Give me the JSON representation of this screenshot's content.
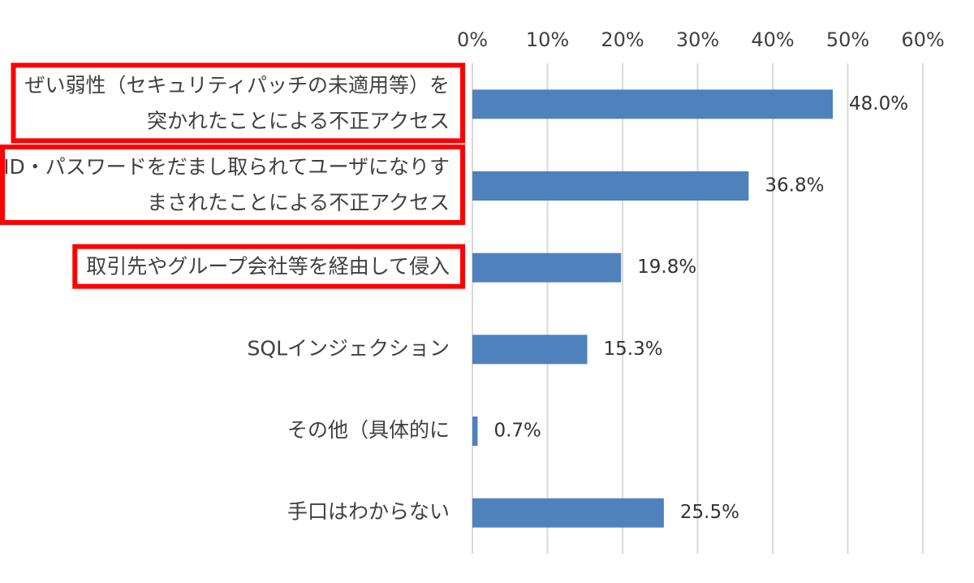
{
  "chart_data": {
    "type": "bar",
    "orientation": "horizontal",
    "title": "",
    "xlabel": "",
    "ylabel": "",
    "xlim": [
      0,
      60
    ],
    "x_ticks": [
      "0%",
      "10%",
      "20%",
      "30%",
      "40%",
      "50%",
      "60%"
    ],
    "x_axis_position": "top",
    "grid": true,
    "legend": "none",
    "bar_color": "#4f81bd",
    "highlight_color": "#ff0000",
    "categories": [
      [
        "ぜい弱性（セキュリティパッチの未適用等）を",
        "突かれたことによる不正アクセス"
      ],
      [
        "ID・パスワードをだまし取られてユーザになりす",
        "まされたことによる不正アクセス"
      ],
      [
        "取引先やグループ会社等を経由して侵入"
      ],
      [
        "SQLインジェクション"
      ],
      [
        "その他（具体的に"
      ],
      [
        "手口はわからない"
      ]
    ],
    "highlighted": [
      true,
      true,
      true,
      false,
      false,
      false
    ],
    "values": [
      48.0,
      36.8,
      19.8,
      15.3,
      0.7,
      25.5
    ],
    "data_labels": [
      "48.0%",
      "36.8%",
      "19.8%",
      "15.3%",
      "0.7%",
      "25.5%"
    ]
  }
}
